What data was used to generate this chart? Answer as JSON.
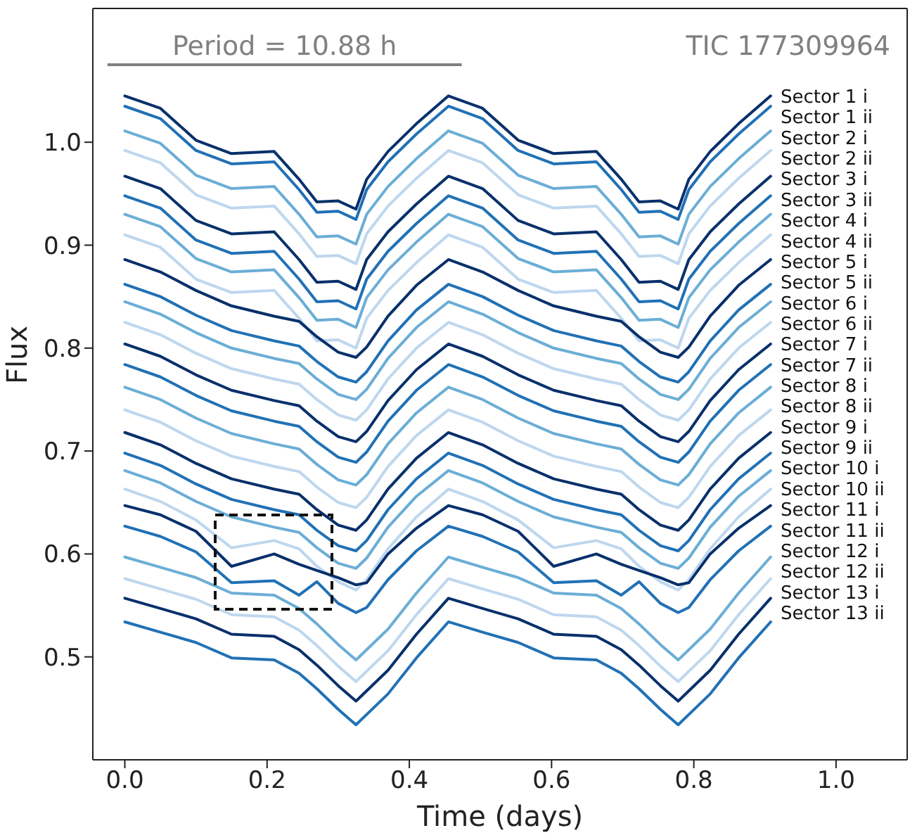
{
  "chart_data": {
    "type": "line",
    "xlabel": "Time (days)",
    "ylabel": "Flux",
    "annotations": [
      "Period = 10.88 h",
      "TIC 177309964"
    ],
    "xlim": [
      -0.045,
      1.1
    ],
    "ylim": [
      0.4,
      1.13
    ],
    "xticks": [
      {
        "value": 0,
        "label": "0.0"
      },
      0.2,
      0.4,
      0.6,
      0.8,
      {
        "value": 1,
        "label": "1.0"
      }
    ],
    "yticks": [
      0.5,
      0.6,
      0.7,
      0.8,
      0.9,
      {
        "value": 1,
        "label": "1.0"
      }
    ],
    "marker": "none",
    "line_style": "solid",
    "x": [
      0,
      0.05,
      0.1,
      0.15,
      0.21,
      0.245,
      0.27,
      0.3,
      0.325,
      0.34,
      0.37,
      0.41,
      0.455,
      0.503,
      0.553,
      0.603,
      0.663,
      0.698,
      0.723,
      0.753,
      0.778,
      0.793,
      0.823,
      0.863,
      0.908
    ],
    "series": [
      {
        "name": "Sector 1 i",
        "color": "#08306b",
        "values": [
          1.045,
          1.033,
          1.002,
          0.989,
          0.991,
          0.964,
          0.942,
          0.943,
          0.935,
          0.964,
          0.991,
          1.018,
          1.045,
          1.033,
          1.002,
          0.989,
          0.991,
          0.964,
          0.942,
          0.943,
          0.935,
          0.964,
          0.991,
          1.018,
          1.045
        ]
      },
      {
        "name": "Sector 1 ii",
        "color": "#2171b5",
        "values": [
          1.035,
          1.023,
          0.992,
          0.979,
          0.981,
          0.954,
          0.932,
          0.933,
          0.925,
          0.954,
          0.981,
          1.008,
          1.035,
          1.023,
          0.992,
          0.979,
          0.981,
          0.954,
          0.932,
          0.933,
          0.925,
          0.954,
          0.981,
          1.008,
          1.035
        ]
      },
      {
        "name": "Sector 2 i",
        "color": "#6baed6",
        "values": [
          1.011,
          0.999,
          0.968,
          0.955,
          0.957,
          0.93,
          0.908,
          0.909,
          0.901,
          0.93,
          0.957,
          0.984,
          1.011,
          0.999,
          0.968,
          0.955,
          0.957,
          0.93,
          0.908,
          0.909,
          0.901,
          0.93,
          0.957,
          0.984,
          1.011
        ]
      },
      {
        "name": "Sector 2 ii",
        "color": "#bdd7ee",
        "values": [
          0.992,
          0.98,
          0.949,
          0.936,
          0.938,
          0.911,
          0.889,
          0.89,
          0.882,
          0.911,
          0.938,
          0.965,
          0.992,
          0.98,
          0.949,
          0.936,
          0.938,
          0.911,
          0.889,
          0.89,
          0.882,
          0.911,
          0.938,
          0.965,
          0.992
        ]
      },
      {
        "name": "Sector 3 i",
        "color": "#08306b",
        "values": [
          0.967,
          0.955,
          0.924,
          0.911,
          0.913,
          0.886,
          0.864,
          0.865,
          0.857,
          0.886,
          0.913,
          0.94,
          0.967,
          0.955,
          0.924,
          0.911,
          0.913,
          0.886,
          0.864,
          0.865,
          0.857,
          0.886,
          0.913,
          0.94,
          0.967
        ]
      },
      {
        "name": "Sector 3 ii",
        "color": "#2171b5",
        "values": [
          0.948,
          0.936,
          0.905,
          0.892,
          0.894,
          0.867,
          0.845,
          0.846,
          0.838,
          0.867,
          0.894,
          0.921,
          0.948,
          0.936,
          0.905,
          0.892,
          0.894,
          0.867,
          0.845,
          0.846,
          0.838,
          0.867,
          0.894,
          0.921,
          0.948
        ]
      },
      {
        "name": "Sector 4 i",
        "color": "#6baed6",
        "values": [
          0.93,
          0.918,
          0.887,
          0.874,
          0.876,
          0.849,
          0.827,
          0.828,
          0.82,
          0.849,
          0.876,
          0.903,
          0.93,
          0.918,
          0.887,
          0.874,
          0.876,
          0.849,
          0.827,
          0.828,
          0.82,
          0.849,
          0.876,
          0.903,
          0.93
        ]
      },
      {
        "name": "Sector 4 ii",
        "color": "#bdd7ee",
        "values": [
          0.91,
          0.898,
          0.867,
          0.854,
          0.856,
          0.829,
          0.807,
          0.808,
          0.8,
          0.829,
          0.856,
          0.883,
          0.91,
          0.898,
          0.867,
          0.854,
          0.856,
          0.829,
          0.807,
          0.808,
          0.8,
          0.829,
          0.856,
          0.883,
          0.91
        ]
      },
      {
        "name": "Sector 5 i",
        "color": "#08306b",
        "values": [
          0.886,
          0.874,
          0.856,
          0.841,
          0.831,
          0.826,
          0.811,
          0.796,
          0.791,
          0.801,
          0.831,
          0.861,
          0.886,
          0.874,
          0.856,
          0.841,
          0.831,
          0.826,
          0.811,
          0.796,
          0.791,
          0.801,
          0.831,
          0.861,
          0.886
        ]
      },
      {
        "name": "Sector 5 ii",
        "color": "#2171b5",
        "values": [
          0.862,
          0.85,
          0.832,
          0.817,
          0.807,
          0.802,
          0.787,
          0.772,
          0.767,
          0.777,
          0.807,
          0.837,
          0.862,
          0.85,
          0.832,
          0.817,
          0.807,
          0.802,
          0.787,
          0.772,
          0.767,
          0.777,
          0.807,
          0.837,
          0.862
        ]
      },
      {
        "name": "Sector 6 i",
        "color": "#6baed6",
        "values": [
          0.845,
          0.833,
          0.815,
          0.8,
          0.79,
          0.785,
          0.77,
          0.755,
          0.75,
          0.76,
          0.79,
          0.82,
          0.845,
          0.833,
          0.815,
          0.8,
          0.79,
          0.785,
          0.77,
          0.755,
          0.75,
          0.76,
          0.79,
          0.82,
          0.845
        ]
      },
      {
        "name": "Sector 6 ii",
        "color": "#bdd7ee",
        "values": [
          0.825,
          0.813,
          0.795,
          0.78,
          0.77,
          0.765,
          0.75,
          0.735,
          0.73,
          0.74,
          0.77,
          0.8,
          0.825,
          0.813,
          0.795,
          0.78,
          0.77,
          0.765,
          0.75,
          0.735,
          0.73,
          0.74,
          0.77,
          0.8,
          0.825
        ]
      },
      {
        "name": "Sector 7 i",
        "color": "#08306b",
        "values": [
          0.804,
          0.792,
          0.774,
          0.759,
          0.749,
          0.744,
          0.729,
          0.714,
          0.709,
          0.719,
          0.749,
          0.779,
          0.804,
          0.792,
          0.774,
          0.759,
          0.749,
          0.744,
          0.729,
          0.714,
          0.709,
          0.719,
          0.749,
          0.779,
          0.804
        ]
      },
      {
        "name": "Sector 7 ii",
        "color": "#2171b5",
        "values": [
          0.784,
          0.772,
          0.754,
          0.739,
          0.729,
          0.724,
          0.709,
          0.694,
          0.689,
          0.699,
          0.729,
          0.759,
          0.784,
          0.772,
          0.754,
          0.739,
          0.729,
          0.724,
          0.709,
          0.694,
          0.689,
          0.699,
          0.729,
          0.759,
          0.784
        ]
      },
      {
        "name": "Sector 8 i",
        "color": "#6baed6",
        "values": [
          0.762,
          0.75,
          0.732,
          0.717,
          0.707,
          0.702,
          0.687,
          0.672,
          0.667,
          0.677,
          0.707,
          0.737,
          0.762,
          0.75,
          0.732,
          0.717,
          0.707,
          0.702,
          0.687,
          0.672,
          0.667,
          0.677,
          0.707,
          0.737,
          0.762
        ]
      },
      {
        "name": "Sector 8 ii",
        "color": "#bdd7ee",
        "values": [
          0.74,
          0.728,
          0.71,
          0.695,
          0.685,
          0.68,
          0.665,
          0.65,
          0.645,
          0.655,
          0.685,
          0.715,
          0.74,
          0.728,
          0.71,
          0.695,
          0.685,
          0.68,
          0.665,
          0.65,
          0.645,
          0.655,
          0.685,
          0.715,
          0.74
        ]
      },
      {
        "name": "Sector 9 i",
        "color": "#08306b",
        "values": [
          0.718,
          0.706,
          0.688,
          0.673,
          0.663,
          0.658,
          0.643,
          0.628,
          0.623,
          0.633,
          0.663,
          0.693,
          0.718,
          0.706,
          0.688,
          0.673,
          0.663,
          0.658,
          0.643,
          0.628,
          0.623,
          0.633,
          0.663,
          0.693,
          0.718
        ]
      },
      {
        "name": "Sector 9 ii",
        "color": "#2171b5",
        "values": [
          0.698,
          0.686,
          0.668,
          0.653,
          0.643,
          0.638,
          0.623,
          0.608,
          0.603,
          0.613,
          0.643,
          0.673,
          0.698,
          0.686,
          0.668,
          0.653,
          0.643,
          0.638,
          0.623,
          0.608,
          0.603,
          0.613,
          0.643,
          0.673,
          0.698
        ]
      },
      {
        "name": "Sector 10 i",
        "color": "#6baed6",
        "values": [
          0.681,
          0.669,
          0.651,
          0.636,
          0.626,
          0.621,
          0.606,
          0.591,
          0.586,
          0.596,
          0.626,
          0.656,
          0.681,
          0.669,
          0.651,
          0.636,
          0.626,
          0.621,
          0.606,
          0.591,
          0.586,
          0.596,
          0.626,
          0.656,
          0.681
        ]
      },
      {
        "name": "Sector 10 ii",
        "color": "#bdd7ee",
        "values": [
          0.663,
          0.651,
          0.633,
          0.606,
          0.613,
          0.605,
          0.588,
          0.573,
          0.565,
          0.575,
          0.605,
          0.636,
          0.663,
          0.651,
          0.633,
          0.606,
          0.613,
          0.605,
          0.588,
          0.573,
          0.565,
          0.575,
          0.605,
          0.636,
          0.663
        ]
      },
      {
        "name": "Sector 11 i",
        "color": "#08306b",
        "values": [
          0.647,
          0.638,
          0.622,
          0.588,
          0.6,
          0.59,
          0.584,
          0.577,
          0.57,
          0.572,
          0.6,
          0.625,
          0.647,
          0.638,
          0.622,
          0.588,
          0.6,
          0.59,
          0.584,
          0.577,
          0.57,
          0.572,
          0.6,
          0.625,
          0.647
        ]
      },
      {
        "name": "Sector 11 ii",
        "color": "#2171b5",
        "values": [
          0.627,
          0.617,
          0.602,
          0.572,
          0.574,
          0.56,
          0.573,
          0.552,
          0.543,
          0.548,
          0.575,
          0.603,
          0.627,
          0.617,
          0.602,
          0.572,
          0.574,
          0.56,
          0.573,
          0.552,
          0.543,
          0.548,
          0.575,
          0.603,
          0.627
        ]
      },
      {
        "name": "Sector 12 i",
        "color": "#6baed6",
        "values": [
          0.597,
          0.587,
          0.577,
          0.562,
          0.56,
          0.547,
          0.532,
          0.512,
          0.497,
          0.507,
          0.527,
          0.562,
          0.597,
          0.587,
          0.577,
          0.562,
          0.56,
          0.547,
          0.532,
          0.512,
          0.497,
          0.507,
          0.527,
          0.562,
          0.597
        ]
      },
      {
        "name": "Sector 12 ii",
        "color": "#bdd7ee",
        "values": [
          0.576,
          0.566,
          0.556,
          0.541,
          0.539,
          0.526,
          0.511,
          0.491,
          0.476,
          0.486,
          0.506,
          0.541,
          0.576,
          0.566,
          0.556,
          0.541,
          0.539,
          0.526,
          0.511,
          0.491,
          0.476,
          0.486,
          0.506,
          0.541,
          0.576
        ]
      },
      {
        "name": "Sector 13 i",
        "color": "#08306b",
        "values": [
          0.557,
          0.547,
          0.537,
          0.522,
          0.52,
          0.507,
          0.492,
          0.472,
          0.457,
          0.467,
          0.487,
          0.522,
          0.557,
          0.547,
          0.537,
          0.522,
          0.52,
          0.507,
          0.492,
          0.472,
          0.457,
          0.467,
          0.487,
          0.522,
          0.557
        ]
      },
      {
        "name": "Sector 13 ii",
        "color": "#2171b5",
        "values": [
          0.534,
          0.524,
          0.514,
          0.499,
          0.497,
          0.484,
          0.469,
          0.449,
          0.434,
          0.444,
          0.464,
          0.499,
          0.534,
          0.524,
          0.514,
          0.499,
          0.497,
          0.484,
          0.469,
          0.449,
          0.434,
          0.444,
          0.464,
          0.499,
          0.534
        ]
      }
    ]
  }
}
